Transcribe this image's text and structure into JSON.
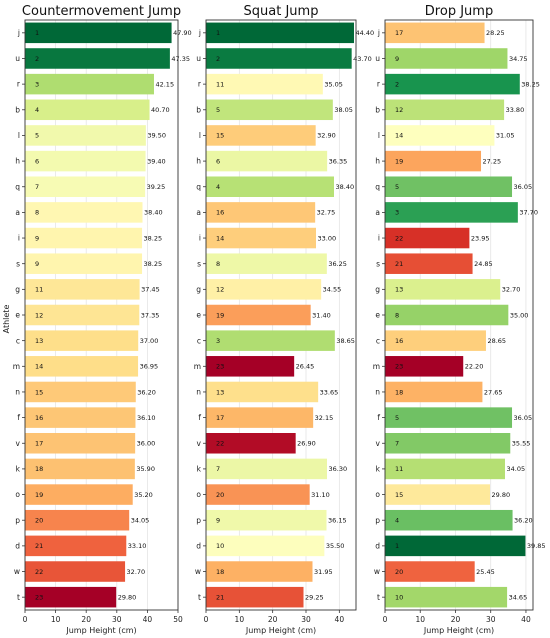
{
  "figure": {
    "ylabel": "Athlete"
  },
  "chart_data": [
    {
      "type": "bar",
      "title": "Countermovement Jump",
      "xlabel": "Jump Height (cm)",
      "xlim": [
        0,
        50
      ],
      "xticks": [
        0,
        10,
        20,
        30,
        40,
        50
      ],
      "categories": [
        "j",
        "u",
        "r",
        "b",
        "l",
        "h",
        "q",
        "a",
        "i",
        "s",
        "g",
        "e",
        "c",
        "m",
        "n",
        "f",
        "v",
        "k",
        "o",
        "p",
        "d",
        "w",
        "t"
      ],
      "values": [
        47.9,
        47.35,
        42.15,
        40.7,
        39.5,
        39.4,
        39.25,
        38.4,
        38.25,
        38.25,
        37.45,
        37.35,
        37.0,
        36.95,
        36.2,
        36.1,
        36.0,
        35.9,
        35.2,
        34.05,
        33.1,
        32.7,
        29.8
      ],
      "value_labels": [
        "47.90",
        "47.35",
        "42.15",
        "40.70",
        "39.50",
        "39.40",
        "39.25",
        "38.40",
        "38.25",
        "38.25",
        "37.45",
        "37.35",
        "37.00",
        "36.95",
        "36.20",
        "36.10",
        "36.00",
        "35.90",
        "35.20",
        "34.05",
        "33.10",
        "32.70",
        "29.80"
      ],
      "ranks": [
        1,
        2,
        3,
        4,
        5,
        6,
        7,
        8,
        9,
        9,
        11,
        12,
        13,
        14,
        15,
        16,
        17,
        18,
        19,
        20,
        21,
        22,
        23
      ],
      "grid": true
    },
    {
      "type": "bar",
      "title": "Squat Jump",
      "xlabel": "Jump Height (cm)",
      "xlim": [
        0,
        45
      ],
      "xticks": [
        0,
        10,
        20,
        30,
        40
      ],
      "categories": [
        "j",
        "u",
        "r",
        "b",
        "l",
        "h",
        "q",
        "a",
        "i",
        "s",
        "g",
        "e",
        "c",
        "m",
        "n",
        "f",
        "v",
        "k",
        "o",
        "p",
        "d",
        "w",
        "t"
      ],
      "values": [
        44.4,
        43.7,
        35.05,
        38.05,
        32.9,
        36.35,
        38.4,
        32.75,
        33.0,
        36.25,
        34.55,
        31.4,
        38.65,
        26.45,
        33.65,
        32.15,
        26.9,
        36.3,
        31.1,
        36.15,
        35.5,
        31.95,
        29.25
      ],
      "value_labels": [
        "44.40",
        "43.70",
        "35.05",
        "38.05",
        "32.90",
        "36.35",
        "38.40",
        "32.75",
        "33.00",
        "36.25",
        "34.55",
        "31.40",
        "38.65",
        "26.45",
        "33.65",
        "32.15",
        "26.90",
        "36.30",
        "31.10",
        "36.15",
        "35.50",
        "31.95",
        "29.25"
      ],
      "ranks": [
        1,
        2,
        11,
        5,
        15,
        6,
        4,
        16,
        14,
        8,
        12,
        19,
        3,
        23,
        13,
        17,
        22,
        7,
        20,
        9,
        10,
        18,
        21
      ],
      "grid": true
    },
    {
      "type": "bar",
      "title": "Drop Jump",
      "xlabel": "Jump Height (cm)",
      "xlim": [
        0,
        42
      ],
      "xticks": [
        0,
        10,
        20,
        30,
        40
      ],
      "categories": [
        "j",
        "u",
        "r",
        "b",
        "l",
        "h",
        "q",
        "a",
        "i",
        "s",
        "g",
        "e",
        "c",
        "m",
        "n",
        "f",
        "v",
        "k",
        "o",
        "p",
        "d",
        "w",
        "t"
      ],
      "values": [
        28.25,
        34.75,
        38.25,
        33.8,
        31.05,
        27.25,
        36.05,
        37.7,
        23.95,
        24.85,
        32.7,
        35.0,
        28.65,
        22.2,
        27.65,
        36.05,
        35.55,
        34.05,
        29.8,
        36.2,
        39.85,
        25.45,
        34.65
      ],
      "value_labels": [
        "28.25",
        "34.75",
        "38.25",
        "33.80",
        "31.05",
        "27.25",
        "36.05",
        "37.70",
        "23.95",
        "24.85",
        "32.70",
        "35.00",
        "28.65",
        "22.20",
        "27.65",
        "36.05",
        "35.55",
        "34.05",
        "29.80",
        "36.20",
        "39.85",
        "25.45",
        "34.65"
      ],
      "ranks": [
        17,
        9,
        2,
        12,
        14,
        19,
        5,
        3,
        22,
        21,
        13,
        8,
        16,
        23,
        18,
        5,
        7,
        11,
        15,
        4,
        1,
        20,
        10
      ],
      "grid": true
    }
  ],
  "colors": {
    "colormap": "RdYlGn",
    "scale": [
      "#a50026",
      "#d73027",
      "#f46d43",
      "#fdae61",
      "#fee08b",
      "#ffffbf",
      "#d9ef8b",
      "#a6d96a",
      "#66bd63",
      "#1a9850",
      "#006837"
    ],
    "grid": "#e4e4e4",
    "axis": "#333333"
  }
}
